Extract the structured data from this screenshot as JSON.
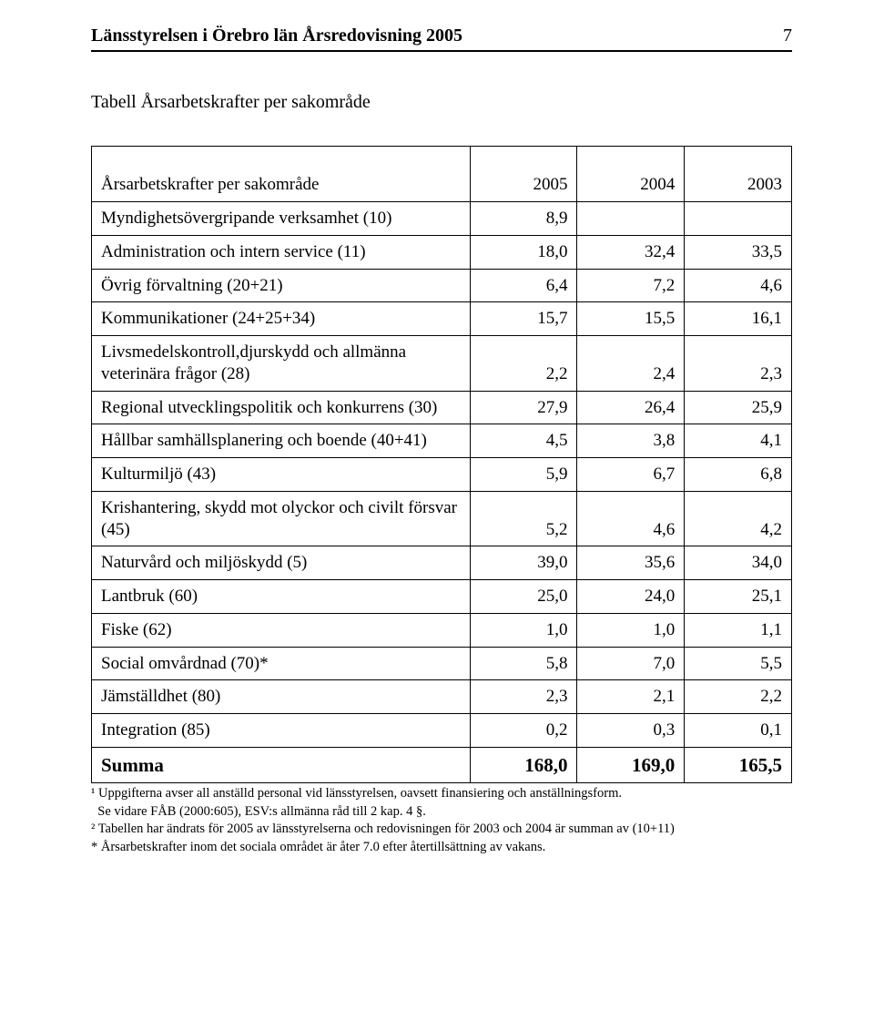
{
  "header": {
    "title": "Länsstyrelsen i Örebro län Årsredovisning 2005",
    "page_number": "7"
  },
  "table": {
    "title": "Tabell Årsarbetskrafter per sakområde",
    "columns": [
      "Årsarbetskrafter per sakområde",
      "2005",
      "2004",
      "2003"
    ],
    "rows": [
      {
        "label": "Myndighetsövergripande verksamhet (10)",
        "v": [
          "8,9",
          "",
          ""
        ]
      },
      {
        "label": "Administration och intern service (11)",
        "v": [
          "18,0",
          "32,4",
          "33,5"
        ]
      },
      {
        "label": "Övrig förvaltning (20+21)",
        "v": [
          "6,4",
          "7,2",
          "4,6"
        ]
      },
      {
        "label": "Kommunikationer (24+25+34)",
        "v": [
          "15,7",
          "15,5",
          "16,1"
        ]
      },
      {
        "label": "Livsmedelskontroll,djurskydd och allmänna veterinära frågor (28)",
        "v": [
          "2,2",
          "2,4",
          "2,3"
        ]
      },
      {
        "label": "Regional utvecklingspolitik och konkurrens (30)",
        "v": [
          "27,9",
          "26,4",
          "25,9"
        ]
      },
      {
        "label": "Hållbar samhällsplanering och boende (40+41)",
        "v": [
          "4,5",
          "3,8",
          "4,1"
        ]
      },
      {
        "label": "Kulturmiljö (43)",
        "v": [
          "5,9",
          "6,7",
          "6,8"
        ]
      },
      {
        "label": "Krishantering, skydd mot olyckor och civilt försvar (45)",
        "v": [
          "5,2",
          "4,6",
          "4,2"
        ]
      },
      {
        "label": "Naturvård och miljöskydd (5)",
        "v": [
          "39,0",
          "35,6",
          "34,0"
        ]
      },
      {
        "label": "Lantbruk (60)",
        "v": [
          "25,0",
          "24,0",
          "25,1"
        ]
      },
      {
        "label": "Fiske (62)",
        "v": [
          "1,0",
          "1,0",
          "1,1"
        ]
      },
      {
        "label": "Social omvårdnad (70)*",
        "v": [
          "5,8",
          "7,0",
          "5,5"
        ]
      },
      {
        "label": "Jämställdhet (80)",
        "v": [
          "2,3",
          "2,1",
          "2,2"
        ]
      },
      {
        "label": "Integration (85)",
        "v": [
          "0,2",
          "0,3",
          "0,1"
        ]
      }
    ],
    "sum": {
      "label": "Summa",
      "v": [
        "168,0",
        "169,0",
        "165,5"
      ]
    }
  },
  "footnotes": {
    "l1": "¹ Uppgifterna avser all anställd personal vid länsstyrelsen, oavsett finansiering och anställningsform.",
    "l2": "  Se vidare FÅB (2000:605), ESV:s allmänna råd till 2 kap. 4 §.",
    "l3": "² Tabellen har ändrats för 2005 av länsstyrelserna och redovisningen för 2003 och 2004 är summan av (10+11)",
    "l4": "* Årsarbetskrafter inom det sociala området är åter 7.0 efter återtillsättning av vakans."
  },
  "style": {
    "text_color": "#000000",
    "bg_color": "#ffffff",
    "border_color": "#000000",
    "header_fontsize": 20,
    "title_fontsize": 20,
    "table_fontsize": 19,
    "sum_fontsize": 21,
    "footnote_fontsize": 14.5
  }
}
